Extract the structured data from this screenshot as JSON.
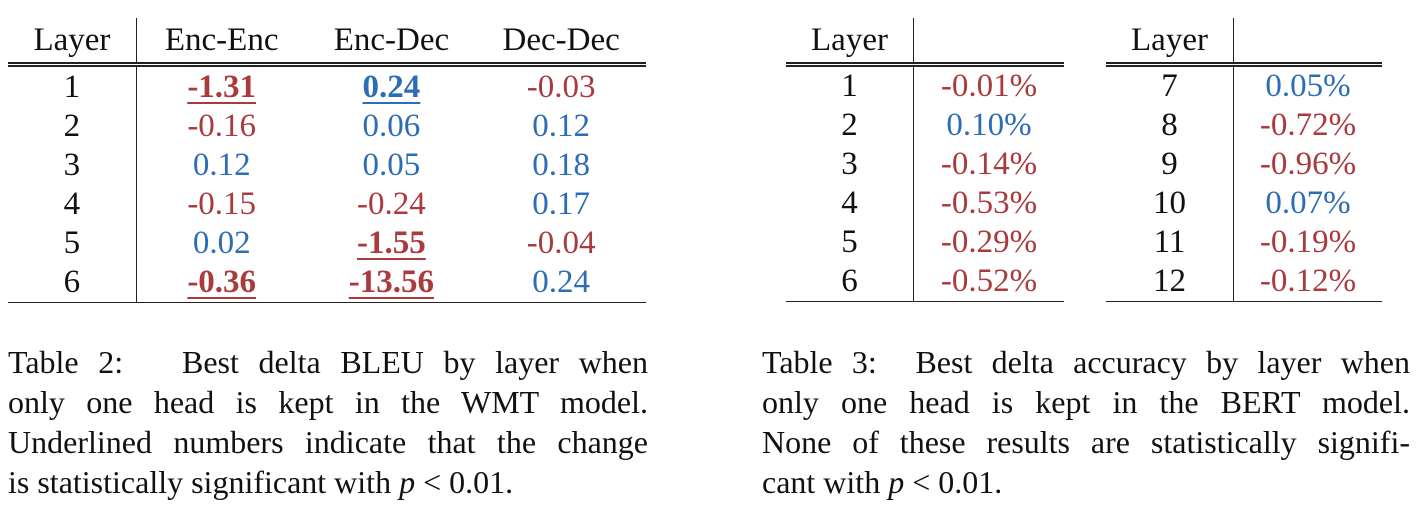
{
  "table2": {
    "headers": [
      "Layer",
      "Enc-Enc",
      "Enc-Dec",
      "Dec-Dec"
    ],
    "rows": [
      {
        "layer": "1",
        "cells": [
          {
            "v": "-1.31",
            "c": "red",
            "sig": true
          },
          {
            "v": "0.24",
            "c": "blue",
            "sig": true
          },
          {
            "v": "-0.03",
            "c": "red",
            "sig": false
          }
        ]
      },
      {
        "layer": "2",
        "cells": [
          {
            "v": "-0.16",
            "c": "red",
            "sig": false
          },
          {
            "v": "0.06",
            "c": "blue",
            "sig": false
          },
          {
            "v": "0.12",
            "c": "blue",
            "sig": false
          }
        ]
      },
      {
        "layer": "3",
        "cells": [
          {
            "v": "0.12",
            "c": "blue",
            "sig": false
          },
          {
            "v": "0.05",
            "c": "blue",
            "sig": false
          },
          {
            "v": "0.18",
            "c": "blue",
            "sig": false
          }
        ]
      },
      {
        "layer": "4",
        "cells": [
          {
            "v": "-0.15",
            "c": "red",
            "sig": false
          },
          {
            "v": "-0.24",
            "c": "red",
            "sig": false
          },
          {
            "v": "0.17",
            "c": "blue",
            "sig": false
          }
        ]
      },
      {
        "layer": "5",
        "cells": [
          {
            "v": "0.02",
            "c": "blue",
            "sig": false
          },
          {
            "v": "-1.55",
            "c": "red",
            "sig": true
          },
          {
            "v": "-0.04",
            "c": "red",
            "sig": false
          }
        ]
      },
      {
        "layer": "6",
        "cells": [
          {
            "v": "-0.36",
            "c": "red",
            "sig": true
          },
          {
            "v": "-13.56",
            "c": "red",
            "sig": true
          },
          {
            "v": "0.24",
            "c": "blue",
            "sig": false
          }
        ]
      }
    ],
    "caption_label": "Table 2:",
    "caption_lines": [
      "Best delta BLEU by layer when",
      "only one head is kept in the WMT model.",
      "Underlined numbers indicate that the change",
      "is statistically significant with"
    ],
    "caption_math": "p",
    "caption_tail": " < 0.01."
  },
  "table3": {
    "header_left": "Layer",
    "header_right": "",
    "left_rows": [
      {
        "layer": "1",
        "v": "-0.01%",
        "c": "red"
      },
      {
        "layer": "2",
        "v": "0.10%",
        "c": "blue"
      },
      {
        "layer": "3",
        "v": "-0.14%",
        "c": "red"
      },
      {
        "layer": "4",
        "v": "-0.53%",
        "c": "red"
      },
      {
        "layer": "5",
        "v": "-0.29%",
        "c": "red"
      },
      {
        "layer": "6",
        "v": "-0.52%",
        "c": "red"
      }
    ],
    "right_rows": [
      {
        "layer": "7",
        "v": "0.05%",
        "c": "blue"
      },
      {
        "layer": "8",
        "v": "-0.72%",
        "c": "red"
      },
      {
        "layer": "9",
        "v": "-0.96%",
        "c": "red"
      },
      {
        "layer": "10",
        "v": "0.07%",
        "c": "blue"
      },
      {
        "layer": "11",
        "v": "-0.19%",
        "c": "red"
      },
      {
        "layer": "12",
        "v": "-0.12%",
        "c": "red"
      }
    ],
    "caption_label": "Table 3:",
    "caption_lines": [
      "Best delta accuracy by layer when",
      "only one head is kept in the BERT model.",
      "None of these results are statistically signifi-",
      "cant with"
    ],
    "caption_math": "p",
    "caption_tail": " < 0.01."
  },
  "colors": {
    "negative": "#a93a3d",
    "positive": "#2d6db5"
  }
}
